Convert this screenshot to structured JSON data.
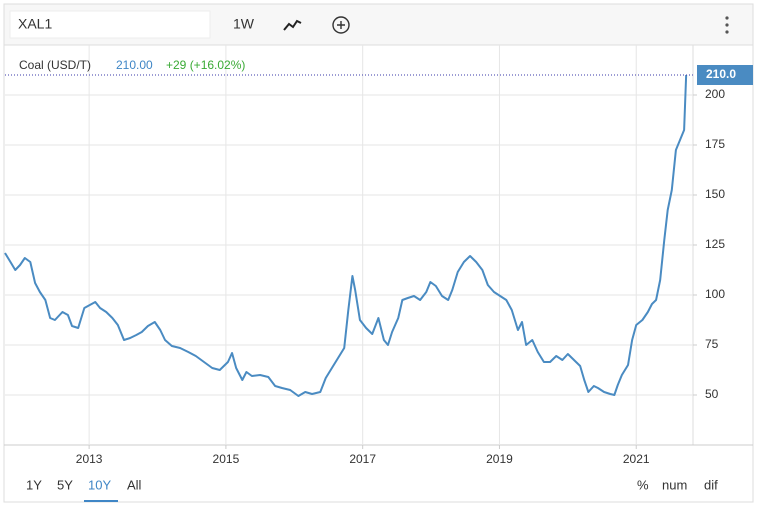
{
  "toolbar": {
    "symbol": "XAL1",
    "interval": "1W"
  },
  "chart_data": {
    "type": "line",
    "legend": {
      "name": "Coal (USD/T)",
      "price": "210.00",
      "change": "+29 (+16.02%)"
    },
    "price_marker": {
      "value": 210,
      "label": "210.0"
    },
    "x": [
      2011.77,
      2011.85,
      2011.92,
      2011.99,
      2012.06,
      2012.14,
      2012.21,
      2012.28,
      2012.36,
      2012.43,
      2012.5,
      2012.61,
      2012.69,
      2012.75,
      2012.84,
      2012.93,
      2013.01,
      2013.09,
      2013.16,
      2013.25,
      2013.34,
      2013.42,
      2013.51,
      2013.6,
      2013.69,
      2013.77,
      2013.86,
      2013.96,
      2014.04,
      2014.11,
      2014.21,
      2014.33,
      2014.45,
      2014.56,
      2014.68,
      2014.8,
      2014.91,
      2015.03,
      2015.09,
      2015.15,
      2015.24,
      2015.3,
      2015.38,
      2015.5,
      2015.62,
      2015.72,
      2015.82,
      2015.94,
      2016.06,
      2016.16,
      2016.26,
      2016.38,
      2016.46,
      2016.55,
      2016.64,
      2016.73,
      2016.79,
      2016.85,
      2016.89,
      2016.96,
      2017.05,
      2017.14,
      2017.23,
      2017.31,
      2017.37,
      2017.43,
      2017.52,
      2017.58,
      2017.66,
      2017.75,
      2017.84,
      2017.93,
      2017.99,
      2018.07,
      2018.16,
      2018.25,
      2018.31,
      2018.39,
      2018.48,
      2018.57,
      2018.66,
      2018.75,
      2018.83,
      2018.92,
      2019.01,
      2019.1,
      2019.18,
      2019.27,
      2019.33,
      2019.39,
      2019.48,
      2019.56,
      2019.65,
      2019.74,
      2019.83,
      2019.92,
      2020.0,
      2020.09,
      2020.18,
      2020.24,
      2020.3,
      2020.38,
      2020.44,
      2020.53,
      2020.62,
      2020.68,
      2020.73,
      2020.79,
      2020.88,
      2020.94,
      2021.0,
      2021.09,
      2021.17,
      2021.23,
      2021.29,
      2021.35,
      2021.41,
      2021.46,
      2021.52,
      2021.58,
      2021.64,
      2021.7,
      2021.73
    ],
    "series": [
      {
        "name": "Coal (USD/T)",
        "color": "#4a8bc2",
        "values": [
          121,
          116.5,
          112.5,
          115,
          118.5,
          116.5,
          106,
          101.5,
          97.5,
          88.5,
          87.5,
          91.5,
          90,
          84.5,
          83.5,
          93.5,
          95,
          96.5,
          93.5,
          91.5,
          88.5,
          85,
          77.5,
          78.5,
          80,
          81.5,
          84.5,
          86.5,
          82.5,
          77.5,
          74.5,
          73.5,
          71.5,
          69.5,
          66.5,
          63.5,
          62.5,
          66.5,
          71,
          63.5,
          57.5,
          61.5,
          59.5,
          60,
          59,
          54.5,
          53.5,
          52.5,
          49.5,
          51.5,
          50.5,
          51.5,
          58.5,
          63.5,
          68.5,
          73.5,
          92.5,
          109.5,
          102.5,
          87.5,
          83.5,
          80.5,
          88.5,
          77.5,
          75,
          81.5,
          88.5,
          97.5,
          98.5,
          99.5,
          97.5,
          101.5,
          106.5,
          104.5,
          99.5,
          97.5,
          102.5,
          111.5,
          116.5,
          119.5,
          116.5,
          112.5,
          105,
          101.5,
          99.5,
          97.5,
          92.5,
          82.5,
          86.5,
          75,
          77.5,
          71.5,
          66.5,
          66.5,
          69.5,
          67.5,
          70.5,
          67.5,
          64.5,
          57.5,
          51.5,
          54.5,
          53.5,
          51.5,
          50.5,
          50,
          55,
          60,
          65,
          77.5,
          85,
          87.5,
          91.5,
          95.5,
          97.5,
          107.5,
          127.5,
          142.5,
          152.5,
          172.5,
          177.5,
          182.5,
          210
        ]
      }
    ],
    "xlim": [
      2011.77,
      2021.83
    ],
    "xticks": [
      2013,
      2015,
      2017,
      2019,
      2021
    ],
    "ylim": [
      25,
      225
    ],
    "yticks": [
      50,
      75,
      100,
      125,
      150,
      175,
      200
    ],
    "grid": true
  },
  "ranges": [
    "1Y",
    "5Y",
    "10Y",
    "All"
  ],
  "active_range": "10Y",
  "modes": [
    "%",
    "num",
    "dif"
  ]
}
